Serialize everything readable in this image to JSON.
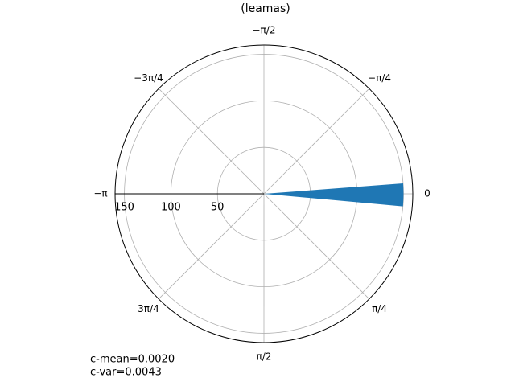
{
  "chart_data": {
    "type": "polar_histogram",
    "title": "(leamas)",
    "bins": [
      -0.075,
      0.09
    ],
    "values": [
      150
    ],
    "color": "#1f77b4",
    "ylim": [
      0,
      160
    ],
    "yticks": [
      50,
      100,
      150
    ],
    "xlim": [
      -3.14159,
      3.14159
    ],
    "xticks": [
      {
        "value": 0,
        "label": "0"
      },
      {
        "value": -0.7854,
        "label": "−π/4"
      },
      {
        "value": -1.5708,
        "label": "−π/2"
      },
      {
        "value": -2.3562,
        "label": "−3π/4"
      },
      {
        "value": -3.14159,
        "label": "−π"
      },
      {
        "value": 2.3562,
        "label": "3π/4"
      },
      {
        "value": 1.5708,
        "label": "π/2"
      },
      {
        "value": 0.7854,
        "label": "π/4"
      }
    ],
    "grid": true,
    "annotations": [
      "c-mean=0.0020",
      "c-var=0.0043"
    ]
  }
}
